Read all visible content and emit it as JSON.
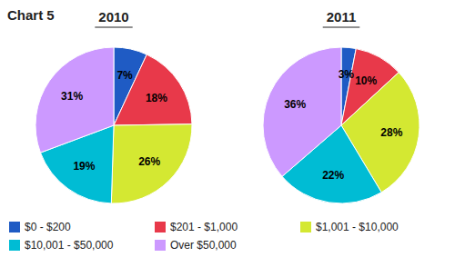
{
  "chart_data": {
    "type": "pie",
    "title": "Chart 5",
    "categories": [
      "$0 - $200",
      "$201 - $1,000",
      "$1,001 - $10,000",
      "$10,001 - $50,000",
      "Over $50,000"
    ],
    "colors": [
      "#1f5bc4",
      "#e8394a",
      "#d4e832",
      "#00bcd4",
      "#cc99ff"
    ],
    "series": [
      {
        "name": "2010",
        "values": [
          7,
          18,
          26,
          19,
          31
        ],
        "value_labels": [
          "7%",
          "18%",
          "26%",
          "19%",
          "31%"
        ]
      },
      {
        "name": "2011",
        "values": [
          3,
          10,
          28,
          22,
          36
        ],
        "value_labels": [
          "3%",
          "10%",
          "28%",
          "22%",
          "36%"
        ]
      }
    ],
    "data_labels": true,
    "legend": "lower left"
  }
}
